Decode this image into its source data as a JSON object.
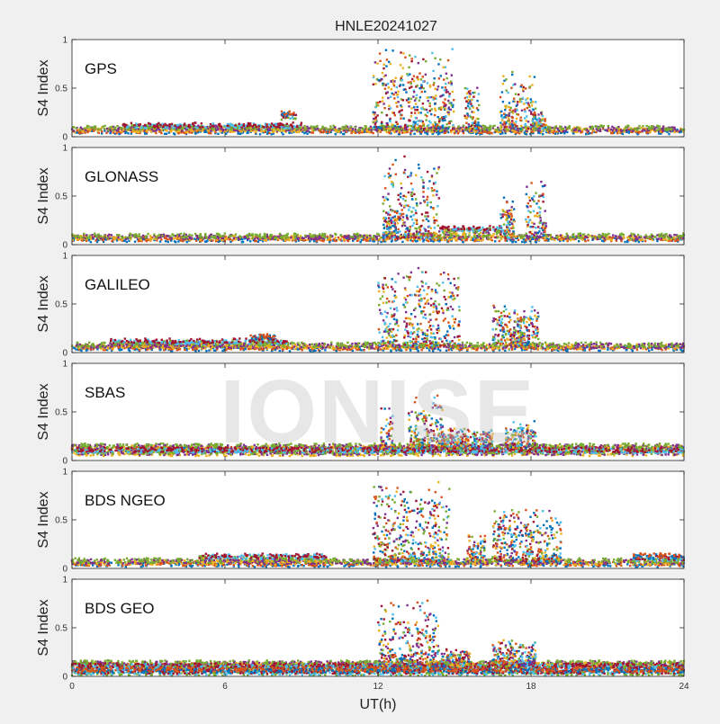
{
  "figure": {
    "title": "HNLE20241027",
    "xlabel": "UT(h)",
    "watermark": "IONISE"
  },
  "chart_data": [
    {
      "type": "scatter",
      "title": "GPS",
      "ylabel": "S4 Index",
      "xlim": [
        0,
        24
      ],
      "ylim": [
        0,
        1
      ],
      "yticks": [
        "0",
        "0.5",
        "1"
      ],
      "xticks": [],
      "grid": false,
      "baseline": 0.08,
      "segments": [
        {
          "xs": [
            0,
            24
          ],
          "lvl": 0.07
        },
        {
          "xs": [
            2,
            9
          ],
          "lvl": 0.1
        },
        {
          "xs": [
            8.2,
            8.8
          ],
          "lvl": 0.22
        }
      ],
      "bursts": [
        {
          "x": [
            11.8,
            15
          ],
          "peak": 0.95,
          "typ": 0.45
        },
        {
          "x": [
            15.4,
            16
          ],
          "peak": 0.55,
          "typ": 0.35
        },
        {
          "x": [
            16.8,
            18.2
          ],
          "peak": 0.68,
          "typ": 0.35
        },
        {
          "x": [
            18,
            18.6
          ],
          "peak": 0.3,
          "typ": 0.2
        }
      ]
    },
    {
      "type": "scatter",
      "title": "GLONASS",
      "ylabel": "S4 Index",
      "xlim": [
        0,
        24
      ],
      "ylim": [
        0,
        1
      ],
      "yticks": [
        "0",
        "0.5",
        "1"
      ],
      "xticks": [],
      "grid": false,
      "baseline": 0.07,
      "segments": [
        {
          "xs": [
            0,
            24
          ],
          "lvl": 0.07
        },
        {
          "xs": [
            14.4,
            17.2
          ],
          "lvl": 0.15
        }
      ],
      "bursts": [
        {
          "x": [
            12.2,
            14.4
          ],
          "peak": 0.95,
          "typ": 0.55
        },
        {
          "x": [
            12.2,
            12.8
          ],
          "peak": 0.35,
          "typ": 0.25
        },
        {
          "x": [
            16.8,
            17.4
          ],
          "peak": 0.5,
          "typ": 0.3
        },
        {
          "x": [
            17.8,
            18.6
          ],
          "peak": 0.72,
          "typ": 0.3
        }
      ]
    },
    {
      "type": "scatter",
      "title": "GALILEO",
      "ylabel": "S4 Index",
      "xlim": [
        0,
        24
      ],
      "ylim": [
        0,
        1
      ],
      "yticks": [
        "0",
        "0.5",
        "1"
      ],
      "xticks": [],
      "grid": false,
      "baseline": 0.07,
      "segments": [
        {
          "xs": [
            0,
            24
          ],
          "lvl": 0.06
        },
        {
          "xs": [
            1.5,
            8.5
          ],
          "lvl": 0.1
        },
        {
          "xs": [
            7,
            8
          ],
          "lvl": 0.15
        }
      ],
      "bursts": [
        {
          "x": [
            12,
            12.8
          ],
          "peak": 0.85,
          "typ": 0.45
        },
        {
          "x": [
            13,
            15.2
          ],
          "peak": 0.95,
          "typ": 0.35
        },
        {
          "x": [
            16.5,
            18.3
          ],
          "peak": 0.55,
          "typ": 0.3
        },
        {
          "x": [
            17.2,
            18
          ],
          "peak": 0.25,
          "typ": 0.18
        }
      ]
    },
    {
      "type": "scatter",
      "title": "SBAS",
      "ylabel": "S4 Index",
      "xlim": [
        0,
        24
      ],
      "ylim": [
        0,
        1
      ],
      "yticks": [
        "0",
        "0.5",
        "1"
      ],
      "xticks": [],
      "grid": false,
      "baseline": 0.12,
      "segments": [
        {
          "xs": [
            0,
            24
          ],
          "lvl": 0.13
        },
        {
          "xs": [
            0,
            24
          ],
          "lvl": 0.09
        }
      ],
      "bursts": [
        {
          "x": [
            12.1,
            12.6
          ],
          "peak": 0.6,
          "typ": 0.35
        },
        {
          "x": [
            13.2,
            14.6
          ],
          "peak": 0.7,
          "typ": 0.35
        },
        {
          "x": [
            14.5,
            16.5
          ],
          "peak": 0.35,
          "typ": 0.2
        },
        {
          "x": [
            17,
            18.2
          ],
          "peak": 0.42,
          "typ": 0.22
        }
      ]
    },
    {
      "type": "scatter",
      "title": "BDS NGEO",
      "ylabel": "S4 Index",
      "xlim": [
        0,
        24
      ],
      "ylim": [
        0,
        1
      ],
      "yticks": [
        "0",
        "0.5",
        "1"
      ],
      "xticks": [],
      "grid": false,
      "baseline": 0.07,
      "segments": [
        {
          "xs": [
            0,
            24
          ],
          "lvl": 0.06
        },
        {
          "xs": [
            5,
            10
          ],
          "lvl": 0.11
        },
        {
          "xs": [
            22,
            24
          ],
          "lvl": 0.11
        }
      ],
      "bursts": [
        {
          "x": [
            11.8,
            14.8
          ],
          "peak": 0.95,
          "typ": 0.5
        },
        {
          "x": [
            15.5,
            16.2
          ],
          "peak": 0.4,
          "typ": 0.25
        },
        {
          "x": [
            16.5,
            19.2
          ],
          "peak": 0.65,
          "typ": 0.3
        }
      ]
    },
    {
      "type": "scatter",
      "title": "BDS GEO",
      "ylabel": "S4 Index",
      "xlim": [
        0,
        24
      ],
      "ylim": [
        0,
        1
      ],
      "yticks": [
        "0",
        "0.5",
        "1"
      ],
      "xticks": [
        "0",
        "6",
        "12",
        "18",
        "24"
      ],
      "xtick_values": [
        0,
        6,
        12,
        18,
        24
      ],
      "grid": false,
      "baseline": 0.1,
      "segments": [
        {
          "xs": [
            0,
            24
          ],
          "lvl": 0.12
        },
        {
          "xs": [
            0,
            24
          ],
          "lvl": 0.09
        },
        {
          "xs": [
            0,
            24
          ],
          "lvl": 0.05
        }
      ],
      "bursts": [
        {
          "x": [
            12,
            14.4
          ],
          "peak": 0.82,
          "typ": 0.35
        },
        {
          "x": [
            14.5,
            15.6
          ],
          "peak": 0.3,
          "typ": 0.18
        },
        {
          "x": [
            16.5,
            18.2
          ],
          "peak": 0.4,
          "typ": 0.22
        }
      ]
    }
  ],
  "colors": {
    "series": [
      "#0072BD",
      "#D95319",
      "#EDB120",
      "#7E2F8E",
      "#77AC30",
      "#4DBEEE",
      "#A2142F"
    ]
  }
}
